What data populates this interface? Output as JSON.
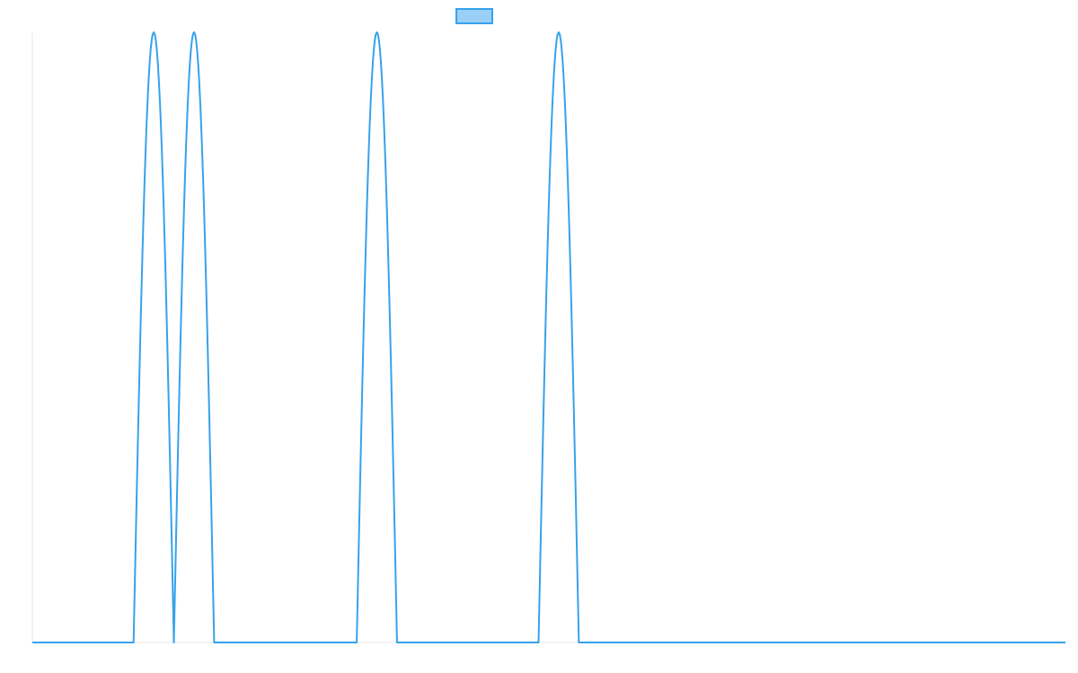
{
  "chart_data": {
    "type": "line",
    "title": "",
    "xlabel": "",
    "ylabel": "",
    "xlim": [
      0,
      1000
    ],
    "ylim": [
      0,
      1
    ],
    "grid": false,
    "legend_placement": "top-center",
    "series": [
      {
        "name": "",
        "color": "#36a2eb",
        "fill": "#9ad0f5",
        "pulses": [
          {
            "start": 98,
            "end": 137
          },
          {
            "start": 137,
            "end": 176
          },
          {
            "start": 314,
            "end": 353
          },
          {
            "start": 490,
            "end": 529
          }
        ]
      }
    ]
  }
}
